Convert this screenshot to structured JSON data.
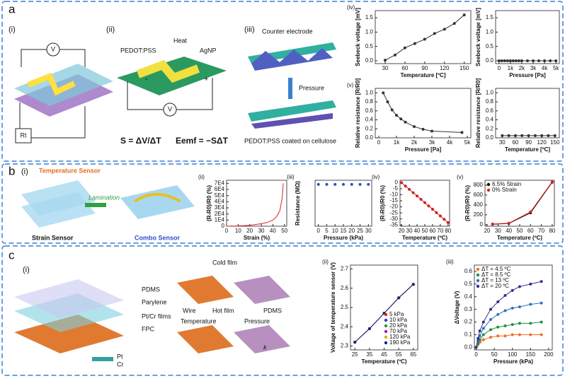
{
  "diagram": {
    "a": {
      "letter": "a",
      "i": "(i)",
      "v_meter": "V",
      "rt": "Rt",
      "ii": "(ii)",
      "heat": "Heat",
      "pedot": "PEDOT:PSS",
      "agnp": "AgNP",
      "minus": "-",
      "plus": "+",
      "v2": "V",
      "seebeck_eq": "S = ΔV/ΔT",
      "emf_eq": "Eemf = −SΔT",
      "iii": "(iii)",
      "counter": "Counter electrode",
      "pressure": "Pressure",
      "coated": "PEDOT:PSS coated on cellulose"
    },
    "b": {
      "letter": "b",
      "i": "(i)",
      "temp_sensor": "Temperature Sensor",
      "strain_sensor": "Strain Sensor",
      "lamination": "Lamination",
      "combo": "Combo Sensor"
    },
    "c": {
      "letter": "c",
      "i": "(i)",
      "pdms": "PDMS",
      "parylene": "Parylene",
      "ptcr": "Pt/Cr films",
      "fpc": "FPC",
      "pt": "Pt",
      "cr": "Cr",
      "cold": "Cold film",
      "wire": "Wire",
      "hot": "Hot film",
      "pdms2": "PDMS",
      "temperature": "Temperature",
      "pressure": "Pressure",
      "k": "k"
    }
  },
  "chart_data": [
    {
      "type": "line",
      "label": "(iv)",
      "ylabel": "Seebeck voltage [mV]",
      "xlabel": "Temperature [ºC]",
      "x": [
        30,
        45,
        60,
        75,
        90,
        105,
        120,
        135,
        150
      ],
      "xlim": [
        15,
        160
      ],
      "xticks": [
        30,
        60,
        90,
        120,
        150
      ],
      "ylim": [
        -0.1,
        1.75
      ],
      "yticks": [
        {
          "value": 0,
          "label": "0.0"
        },
        0.5,
        {
          "value": 1,
          "label": "1.0"
        },
        1.5
      ],
      "markers": true,
      "series": [
        {
          "color": "#333333",
          "values": [
            0.02,
            0.2,
            0.45,
            0.6,
            0.75,
            0.95,
            1.1,
            1.3,
            1.6
          ]
        }
      ]
    },
    {
      "type": "line",
      "ylabel": "Seebeck voltage [mV]",
      "xlabel": "Pressure [Pa]",
      "x": [
        0,
        250,
        500,
        750,
        1000,
        1250,
        1500,
        1750,
        2000,
        2500,
        3000,
        3500,
        4000,
        4500,
        5000
      ],
      "xlim": [
        -300,
        5300
      ],
      "xticks": [
        0,
        {
          "value": 1000,
          "label": "1k"
        },
        {
          "value": 2000,
          "label": "2k"
        },
        {
          "value": 3000,
          "label": "3k"
        },
        {
          "value": 4000,
          "label": "4k"
        },
        {
          "value": 5000,
          "label": "5k"
        }
      ],
      "ylim": [
        -0.1,
        1.75
      ],
      "yticks": [
        {
          "value": 0,
          "label": "0.0"
        },
        0.5,
        {
          "value": 1,
          "label": "1.0"
        },
        1.5
      ],
      "markers": true,
      "series": [
        {
          "color": "#333333",
          "values": [
            0,
            0,
            0,
            0,
            0,
            0,
            0,
            0,
            0,
            0,
            0,
            0,
            0,
            0,
            0
          ]
        }
      ]
    },
    {
      "type": "line",
      "label": "(v)",
      "ylabel": "Relative resistance [R/R0]",
      "xlabel": "Pressure [Pa]",
      "x": [
        250,
        500,
        750,
        1000,
        1250,
        1500,
        2000,
        2500,
        3000,
        4700
      ],
      "xlim": [
        -200,
        5200
      ],
      "xticks": [
        0,
        {
          "value": 1000,
          "label": "1k"
        },
        {
          "value": 2000,
          "label": "2k"
        },
        {
          "value": 3000,
          "label": "3k"
        },
        {
          "value": 4000,
          "label": "4k"
        },
        {
          "value": 5000,
          "label": "5k"
        }
      ],
      "ylim": [
        0,
        1.1
      ],
      "yticks": [
        {
          "value": 0,
          "label": "0.0"
        },
        0.2,
        0.4,
        0.6,
        0.8,
        {
          "value": 1,
          "label": "1.0"
        }
      ],
      "markers": true,
      "series": [
        {
          "color": "#333333",
          "values": [
            1.0,
            0.8,
            0.62,
            0.5,
            0.42,
            0.35,
            0.25,
            0.19,
            0.15,
            0.12
          ]
        }
      ]
    },
    {
      "type": "line",
      "ylabel": "Relative resistance [R/R0]",
      "xlabel": "Temperature [ºC]",
      "x": [
        30,
        45,
        60,
        75,
        90,
        105,
        120,
        135,
        150
      ],
      "xlim": [
        15,
        160
      ],
      "xticks": [
        30,
        60,
        90,
        120,
        150
      ],
      "ylim": [
        0,
        1.1
      ],
      "yticks": [
        {
          "value": 0,
          "label": "0.0"
        },
        0.2,
        0.4,
        0.6,
        0.8,
        {
          "value": 1,
          "label": "1.0"
        }
      ],
      "markers": true,
      "series": [
        {
          "color": "#333333",
          "values": [
            0.05,
            0.05,
            0.05,
            0.05,
            0.05,
            0.05,
            0.05,
            0.05,
            0.05
          ]
        }
      ]
    },
    {
      "type": "line",
      "label": "(ii)",
      "ylabel": "(R-R0)/R0 (%)",
      "xlabel": "Strain (%)",
      "x": [
        0,
        10,
        20,
        30,
        35,
        40,
        43,
        46,
        48,
        49
      ],
      "xlim": [
        0,
        52
      ],
      "xticks": [
        0,
        10,
        20,
        30,
        40,
        50
      ],
      "ylim": [
        0,
        75000
      ],
      "yticks": [
        0,
        {
          "value": 10000,
          "label": "1E4"
        },
        {
          "value": 20000,
          "label": "2E4"
        },
        {
          "value": 30000,
          "label": "3E4"
        },
        {
          "value": 40000,
          "label": "4E4"
        },
        {
          "value": 50000,
          "label": "5E4"
        },
        {
          "value": 60000,
          "label": "6E4"
        },
        {
          "value": 70000,
          "label": "7E4"
        }
      ],
      "markers": false,
      "series": [
        {
          "color": "#e02020",
          "values": [
            0,
            500,
            1500,
            4000,
            6000,
            10000,
            15000,
            25000,
            45000,
            70000
          ]
        }
      ]
    },
    {
      "type": "scatter",
      "label": "(iii)",
      "ylabel": "Resistance (MΩ)",
      "xlabel": "Pressure (kPa)",
      "x": [
        0,
        5,
        10,
        15,
        20,
        25,
        30
      ],
      "xlim": [
        -2,
        32
      ],
      "xticks": [
        0,
        5,
        10,
        15,
        20,
        25,
        30
      ],
      "ylim": [
        0,
        1.1
      ],
      "markers": true,
      "series": [
        {
          "color": "#3050c8",
          "values": [
            1,
            1,
            1,
            1,
            1,
            1,
            1
          ]
        }
      ]
    },
    {
      "type": "line",
      "label": "(iv)",
      "ylabel": "(R-R0)/R0 (%)",
      "xlabel": "Temperature (ºC)",
      "x": [
        20,
        25,
        30,
        35,
        40,
        45,
        50,
        55,
        60,
        65,
        70,
        75,
        80
      ],
      "xlim": [
        18,
        82
      ],
      "xticks": [
        20,
        30,
        40,
        50,
        60,
        70,
        80
      ],
      "ylim": [
        -36,
        2
      ],
      "yticks": [
        0,
        -5,
        -10,
        -15,
        -20,
        -25,
        -30,
        -35
      ],
      "markers": true,
      "series": [
        {
          "color": "#cc2020",
          "values": [
            0,
            -2.8,
            -5.5,
            -8.3,
            -11,
            -13.8,
            -16.5,
            -19.3,
            -22,
            -24.8,
            -27.5,
            -30.3,
            -33
          ]
        }
      ]
    },
    {
      "type": "line",
      "label": "(v)",
      "ylabel": "(R-R0)/R0 (%)",
      "xlabel": "Temperature (ºC)",
      "x": [
        25,
        40,
        60,
        80
      ],
      "xlim": [
        18,
        82
      ],
      "xticks": [
        20,
        30,
        40,
        50,
        60,
        70,
        80
      ],
      "ylim": [
        -30,
        900
      ],
      "yticks": [
        0,
        200,
        400,
        600,
        800
      ],
      "markers": true,
      "legend": "upper left",
      "series": [
        {
          "name": "6.5% Strain",
          "color": "#111111",
          "values": [
            10,
            25,
            240,
            860
          ]
        },
        {
          "name": "0% Strain",
          "color": "#e02020",
          "values": [
            15,
            30,
            260,
            870
          ]
        }
      ]
    },
    {
      "type": "line",
      "label": "(ii)",
      "ylabel": "Voltage of temperature sensor (V)",
      "xlabel": "Temperature (ºC)",
      "x": [
        25,
        35,
        45,
        55,
        65
      ],
      "xlim": [
        22,
        68
      ],
      "xticks": [
        25,
        35,
        45,
        55,
        65
      ],
      "ylim": [
        2.28,
        2.72
      ],
      "yticks": [
        2.3,
        2.4,
        2.5,
        2.6,
        2.7
      ],
      "markers": true,
      "legend": "lower right",
      "series": [
        {
          "name": "5 kPa",
          "color": "#e02020",
          "values": [
            2.32,
            2.39,
            2.47,
            2.55,
            2.62
          ]
        },
        {
          "name": "10 kPa",
          "color": "#2040d0",
          "values": [
            2.32,
            2.39,
            2.47,
            2.55,
            2.62
          ]
        },
        {
          "name": "20 kPa",
          "color": "#20a020",
          "values": [
            2.32,
            2.39,
            2.47,
            2.55,
            2.62
          ]
        },
        {
          "name": "70 kPa",
          "color": "#a020a0",
          "values": [
            2.32,
            2.39,
            2.47,
            2.55,
            2.62
          ]
        },
        {
          "name": "120 kPa",
          "color": "#c8b400",
          "values": [
            2.32,
            2.39,
            2.47,
            2.55,
            2.62
          ]
        },
        {
          "name": "190 kPa",
          "color": "#202080",
          "values": [
            2.32,
            2.39,
            2.47,
            2.55,
            2.62
          ]
        }
      ]
    },
    {
      "type": "line",
      "label": "(iii)",
      "ylabel": "ΔVoltage (V)",
      "xlabel": "Pressure (kPa)",
      "x": [
        0,
        5,
        10,
        20,
        40,
        60,
        80,
        100,
        120,
        150,
        180
      ],
      "xlim": [
        -5,
        210
      ],
      "xticks": [
        0,
        50,
        100,
        150,
        200
      ],
      "ylim": [
        -0.02,
        0.65
      ],
      "yticks": [
        {
          "value": 0,
          "label": "0.0"
        },
        0.1,
        0.2,
        0.3,
        0.4,
        0.5,
        0.6
      ],
      "markers": true,
      "legend": "upper left",
      "series": [
        {
          "name": "ΔT = 4.5 ºC",
          "color": "#f07020",
          "values": [
            0,
            0.02,
            0.04,
            0.06,
            0.08,
            0.09,
            0.09,
            0.1,
            0.1,
            0.1,
            0.1
          ]
        },
        {
          "name": "ΔT = 8.5 ºC",
          "color": "#209040",
          "values": [
            0,
            0.03,
            0.06,
            0.1,
            0.14,
            0.16,
            0.17,
            0.18,
            0.19,
            0.19,
            0.2
          ]
        },
        {
          "name": "ΔT = 13 ºC",
          "color": "#3070c0",
          "values": [
            0,
            0.05,
            0.09,
            0.15,
            0.22,
            0.26,
            0.29,
            0.31,
            0.32,
            0.34,
            0.35
          ]
        },
        {
          "name": "ΔT = 20 ºC",
          "color": "#303090",
          "values": [
            0,
            0.07,
            0.13,
            0.2,
            0.3,
            0.36,
            0.41,
            0.45,
            0.48,
            0.5,
            0.52
          ]
        }
      ]
    }
  ]
}
